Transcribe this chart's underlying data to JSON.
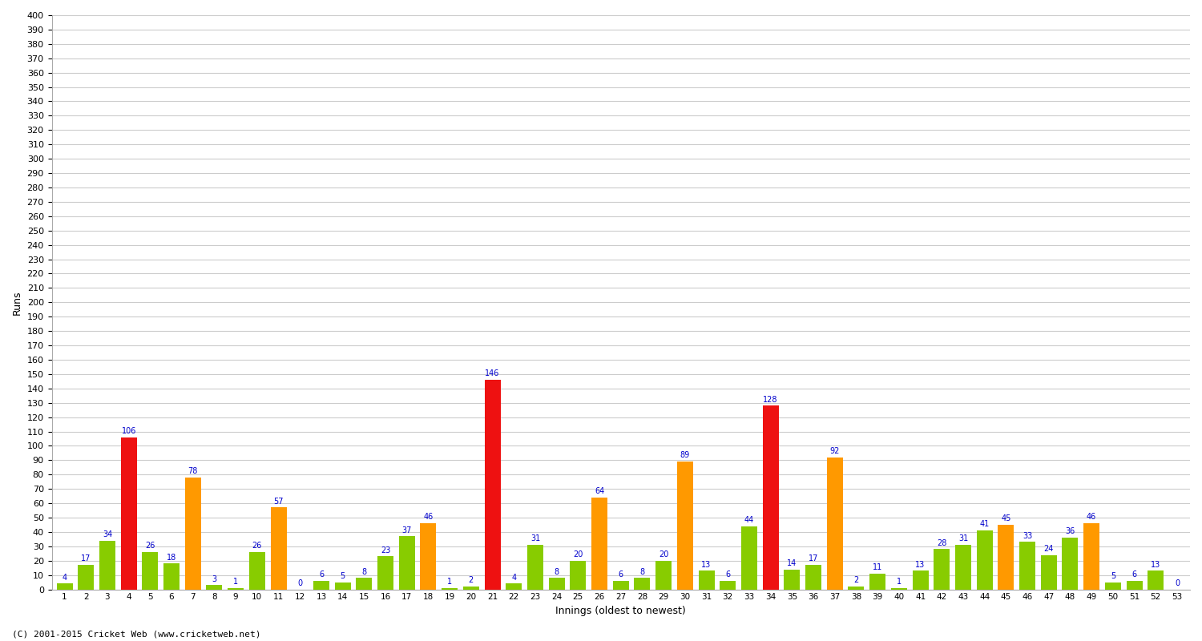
{
  "innings": [
    1,
    2,
    3,
    4,
    5,
    6,
    7,
    8,
    9,
    10,
    11,
    12,
    13,
    14,
    15,
    16,
    17,
    18,
    19,
    20,
    21,
    22,
    23,
    24,
    25,
    26,
    27,
    28,
    29,
    30,
    31,
    32,
    33,
    34,
    35,
    36,
    37,
    38,
    39,
    40,
    41,
    42,
    43,
    44,
    45,
    46,
    47,
    48,
    49,
    50,
    51,
    52,
    53
  ],
  "values": [
    4,
    17,
    34,
    106,
    26,
    18,
    78,
    3,
    1,
    26,
    57,
    0,
    6,
    5,
    8,
    23,
    37,
    46,
    1,
    2,
    146,
    4,
    31,
    8,
    20,
    64,
    6,
    8,
    20,
    89,
    13,
    6,
    44,
    128,
    14,
    17,
    92,
    2,
    11,
    1,
    13,
    28,
    31,
    41,
    45,
    33,
    24,
    36,
    46,
    5,
    6,
    13,
    0
  ],
  "colors": [
    "green",
    "green",
    "green",
    "red",
    "green",
    "green",
    "orange",
    "green",
    "green",
    "green",
    "orange",
    "green",
    "green",
    "green",
    "green",
    "green",
    "green",
    "orange",
    "green",
    "green",
    "red",
    "green",
    "green",
    "green",
    "green",
    "orange",
    "green",
    "green",
    "green",
    "orange",
    "green",
    "green",
    "green",
    "red",
    "green",
    "green",
    "orange",
    "green",
    "green",
    "green",
    "green",
    "green",
    "green",
    "green",
    "orange",
    "green",
    "green",
    "green",
    "orange",
    "green",
    "green",
    "green",
    "green"
  ],
  "ylabel": "Runs",
  "xlabel": "Innings (oldest to newest)",
  "ylim": [
    0,
    400
  ],
  "ytick_step": 10,
  "fig_bg": "#ffffff",
  "plot_bg": "#ffffff",
  "grid_color": "#cccccc",
  "red_color": "#ee1111",
  "orange_color": "#ff9900",
  "green_color": "#88cc00",
  "value_color": "#0000cc",
  "value_fontsize": 7,
  "footer": "(C) 2001-2015 Cricket Web (www.cricketweb.net)"
}
